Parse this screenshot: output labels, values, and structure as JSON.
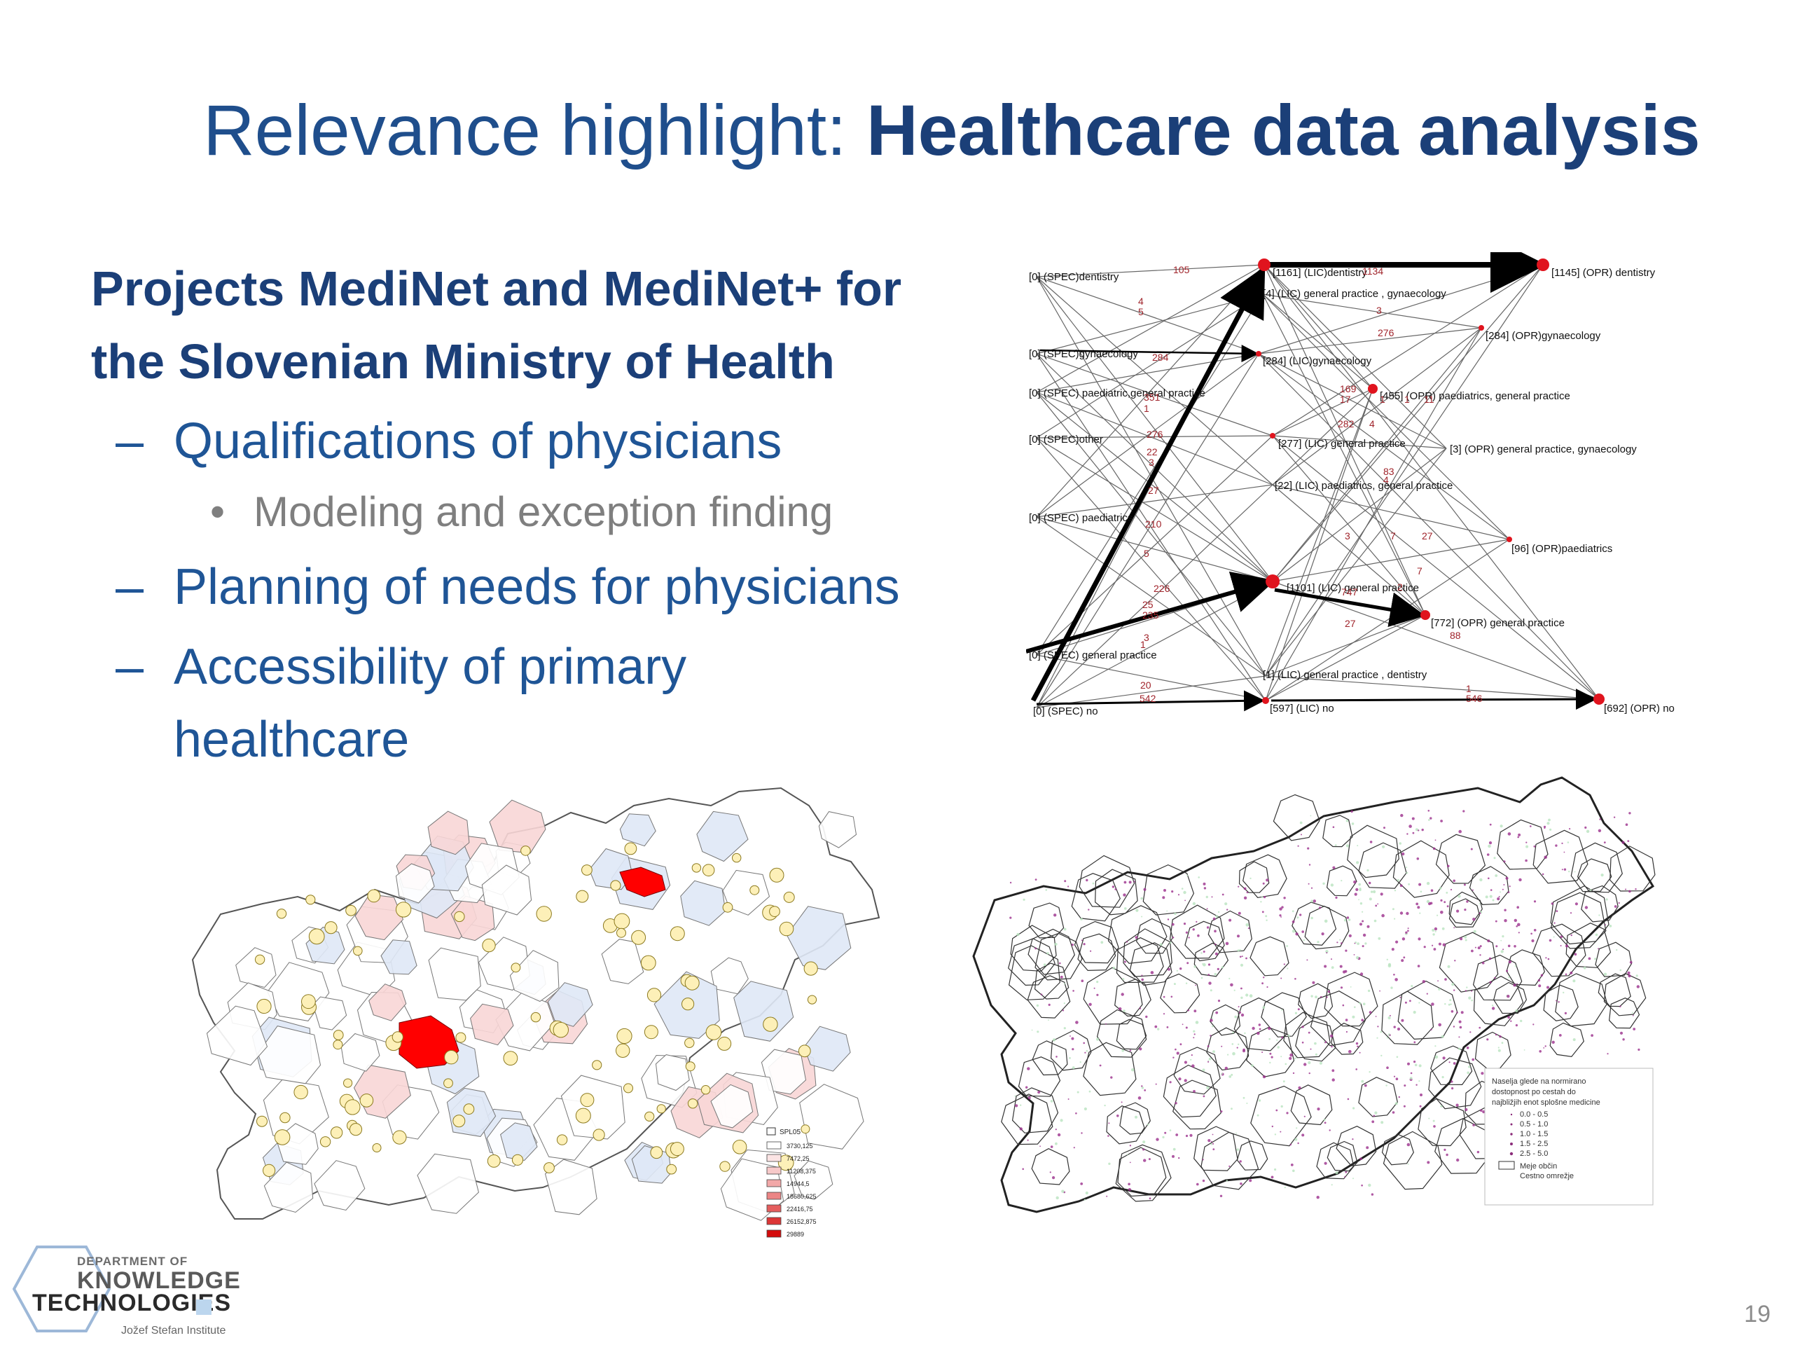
{
  "title": {
    "prefix": "Relevance highlight: ",
    "bold": "Healthcare data analysis"
  },
  "heading": [
    "Projects MediNet and MediNet+ for",
    "the  Slovenian Ministry of Health"
  ],
  "bullets": [
    {
      "label": "Qualifications of physicians",
      "sub": [
        "Modeling and exception finding"
      ]
    },
    {
      "label": "Planning of needs for physicians",
      "sub": []
    },
    {
      "label": "Accessibility of primary",
      "label2": "healthcare",
      "sub": []
    }
  ],
  "network": {
    "spec_nodes": [
      "[0] (SPEC)dentistry",
      "[0] (SPEC)gynaecology",
      "[0] (SPEC) paediatric,general practice",
      "[0] (SPEC)other",
      "[0] (SPEC) paediatrics",
      "[0] (SPEC)  general practice",
      "[0] (SPEC) no"
    ],
    "lic_nodes": [
      "[1161] (LIC)dentistry",
      "[4] (LIC)  general practice , gynaecology",
      "[284] (LIC)gynaecology",
      "[277] (LIC) general practice",
      "[22] (LIC) paediatrics, general practice",
      "[1101] (LIC) general practice",
      "[1] (LIC) general practice , dentistry",
      "[597] (LIC) no"
    ],
    "opr_nodes": [
      "[1145] (OPR) dentistry",
      "[284] (OPR)gynaecology",
      "[455] (OPR) paediatrics, general practice",
      "[3] (OPR) general practice, gynaecology",
      "[96] (OPR)paediatrics",
      "[772] (OPR) general practice",
      "[692] (OPR) no"
    ],
    "edge_labels": [
      "105",
      "1134",
      "4",
      "5",
      "3",
      "276",
      "284",
      "169",
      "17",
      "1",
      "1",
      "11",
      "351",
      "1",
      "282",
      "4",
      "276",
      "22",
      "3",
      "83",
      "4",
      "27",
      "27",
      "3",
      "7",
      "210",
      "7",
      "5",
      "226",
      "747",
      "2",
      "25",
      "235",
      "3",
      "27",
      "88",
      "1",
      "20",
      "542",
      "546",
      "1"
    ]
  },
  "map_legend_left": {
    "title": "SPL05",
    "items": [
      "3730,125",
      "7472,25",
      "11208,375",
      "14944,5",
      "18680,625",
      "22416,75",
      "26152,875",
      "29889"
    ],
    "colors": [
      "#ffffff",
      "#fbe4e4",
      "#f7c9c9",
      "#f2a8a8",
      "#ec8585",
      "#e45e5e",
      "#dc3636",
      "#d40b0b"
    ]
  },
  "map_legend_right": {
    "title": [
      "Naselja glede na normirano",
      "dostopnost po cestah do",
      "najbližjih enot splošne medicine"
    ],
    "items": [
      "0.0 - 0.5",
      "0.5 - 1.0",
      "1.0 - 1.5",
      "1.5 - 2.5",
      "2.5 - 5.0"
    ],
    "boundary": [
      "Meje občin",
      "Cestno omrežje"
    ]
  },
  "logo": {
    "line1": "DEPARTMENT OF",
    "line2": "KNOWLEDGE",
    "line3": "TECHNOLOGIES",
    "institute": "Jožef Stefan Institute"
  },
  "page_number": "19",
  "colors": {
    "title": "#1f4e8c",
    "heading": "#1b3f78",
    "node": "#e0141e",
    "map_highlight": "#ff0000",
    "map_light_blue": "#dfe8f6",
    "map_pink": "#f8d6d6"
  }
}
